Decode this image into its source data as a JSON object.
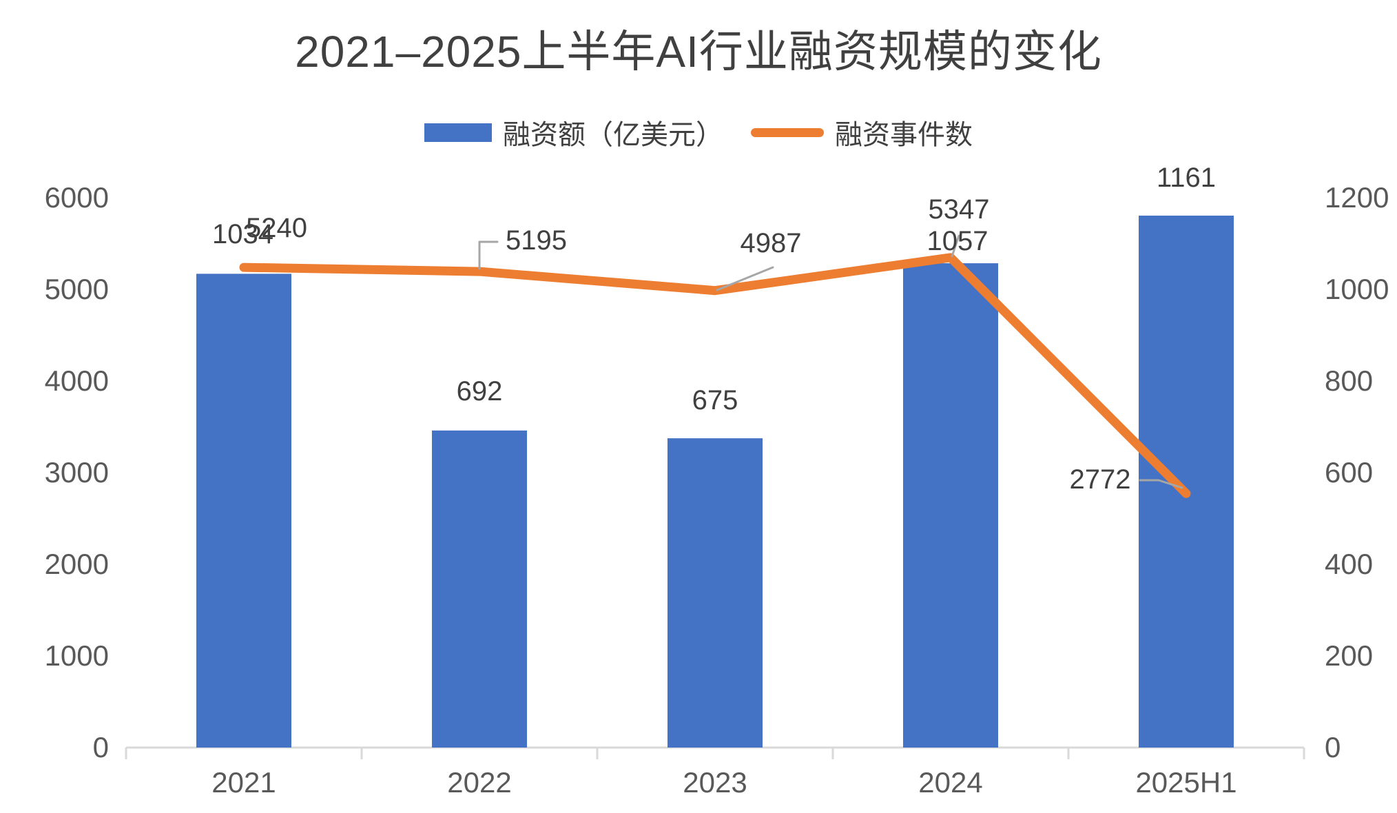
{
  "title": "2021–2025上半年AI行业融资规模的变化",
  "legend": {
    "bar_label": "融资额（亿美元）",
    "line_label": "融资事件数"
  },
  "colors": {
    "bar": "#4472C4",
    "line": "#ED7D31",
    "data_label_text": "#404040",
    "axis_text": "#595959",
    "axis_line": "#D9D9D9",
    "leader_line": "#A6A6A6"
  },
  "chart_data": {
    "type": "bar+line combo",
    "title": "2021–2025上半年AI行业融资规模的变化",
    "categories": [
      "2021",
      "2022",
      "2023",
      "2024",
      "2025H1"
    ],
    "series": [
      {
        "name": "融资额（亿美元）",
        "type": "bar",
        "axis": "right",
        "color": "#4472C4",
        "values": [
          1034,
          692,
          675,
          1057,
          1161
        ],
        "labels": [
          "1034",
          "692",
          "675",
          "1057",
          "1161"
        ]
      },
      {
        "name": "融资事件数",
        "type": "line",
        "axis": "left",
        "color": "#ED7D31",
        "values": [
          5240,
          5195,
          4987,
          5347,
          2772
        ],
        "labels": [
          "5240",
          "5195",
          "4987",
          "5347",
          "2772"
        ]
      }
    ],
    "left_axis": {
      "min": 0,
      "max": 6000,
      "step": 1000,
      "ticks": [
        "6000",
        "5000",
        "4000",
        "3000",
        "2000",
        "1000",
        "0"
      ]
    },
    "right_axis": {
      "min": 0,
      "max": 1200,
      "step": 200,
      "ticks": [
        "1200",
        "1000",
        "800",
        "600",
        "400",
        "200",
        "0"
      ]
    },
    "grid": false,
    "legend_position": "top"
  }
}
